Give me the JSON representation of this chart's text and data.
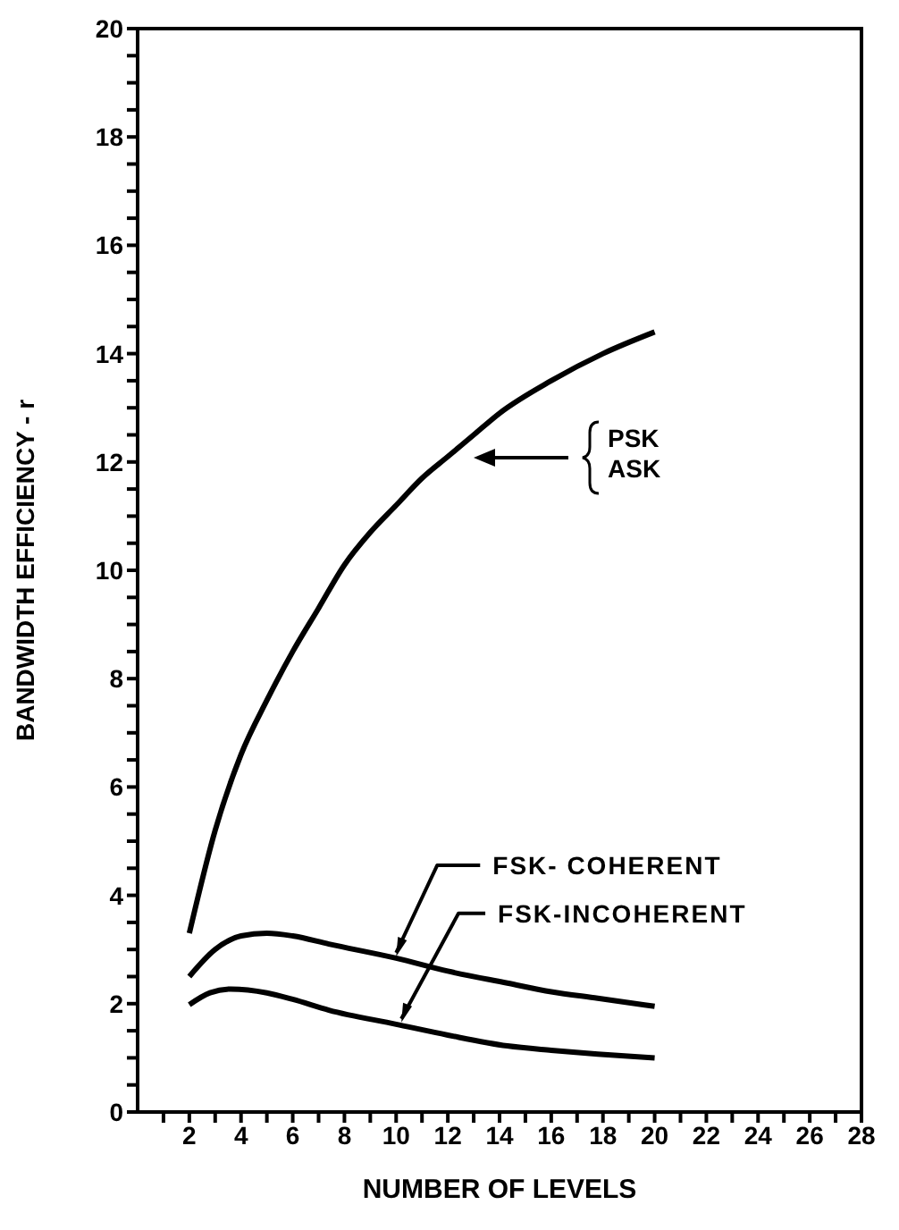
{
  "chart_data": {
    "type": "line",
    "xlabel": "NUMBER OF LEVELS",
    "ylabel": "BANDWIDTH EFFICIENCY - r",
    "xlim": [
      0,
      28
    ],
    "ylim": [
      0,
      20
    ],
    "xticks": [
      {
        "value": 1,
        "label": null
      },
      2,
      {
        "value": 3,
        "label": null
      },
      4,
      {
        "value": 5,
        "label": null
      },
      6,
      {
        "value": 7,
        "label": null
      },
      8,
      {
        "value": 9,
        "label": null
      },
      10,
      {
        "value": 11,
        "label": null
      },
      12,
      {
        "value": 13,
        "label": null
      },
      14,
      {
        "value": 15,
        "label": null
      },
      16,
      {
        "value": 17,
        "label": null
      },
      18,
      {
        "value": 19,
        "label": null
      },
      20,
      {
        "value": 21,
        "label": null
      },
      22,
      {
        "value": 23,
        "label": null
      },
      24,
      {
        "value": 25,
        "label": null
      },
      26,
      {
        "value": 27,
        "label": null
      },
      28
    ],
    "yticks": [
      0,
      {
        "value": 0.5,
        "label": null
      },
      {
        "value": 1,
        "label": null
      },
      {
        "value": 1.5,
        "label": null
      },
      2,
      {
        "value": 2.5,
        "label": null
      },
      {
        "value": 3,
        "label": null
      },
      {
        "value": 3.5,
        "label": null
      },
      4,
      {
        "value": 4.5,
        "label": null
      },
      {
        "value": 5,
        "label": null
      },
      {
        "value": 5.5,
        "label": null
      },
      6,
      {
        "value": 6.5,
        "label": null
      },
      {
        "value": 7,
        "label": null
      },
      {
        "value": 7.5,
        "label": null
      },
      8,
      {
        "value": 8.5,
        "label": null
      },
      {
        "value": 9,
        "label": null
      },
      {
        "value": 9.5,
        "label": null
      },
      10,
      {
        "value": 10.5,
        "label": null
      },
      {
        "value": 11,
        "label": null
      },
      {
        "value": 11.5,
        "label": null
      },
      12,
      {
        "value": 12.5,
        "label": null
      },
      {
        "value": 13,
        "label": null
      },
      {
        "value": 13.5,
        "label": null
      },
      14,
      {
        "value": 14.5,
        "label": null
      },
      {
        "value": 15,
        "label": null
      },
      {
        "value": 15.5,
        "label": null
      },
      16,
      {
        "value": 16.5,
        "label": null
      },
      {
        "value": 17,
        "label": null
      },
      {
        "value": 17.5,
        "label": null
      },
      18,
      {
        "value": 18.5,
        "label": null
      },
      {
        "value": 19,
        "label": null
      },
      {
        "value": 19.5,
        "label": null
      },
      20
    ],
    "marker": "none",
    "line_style": "solid",
    "series": [
      {
        "color": "#000000",
        "x": [
          2,
          3,
          4,
          5,
          6,
          7,
          8,
          9,
          10,
          11,
          12,
          13,
          14,
          16,
          18,
          20
        ],
        "values": [
          3.3,
          5.2,
          6.6,
          7.6,
          8.5,
          9.3,
          10.1,
          10.7,
          11.2,
          11.7,
          12.1,
          12.5,
          12.9,
          13.5,
          14.0,
          14.4
        ]
      },
      {
        "color": "#000000",
        "x": [
          2,
          3,
          4,
          5,
          6,
          7.4,
          10,
          12,
          14.3,
          16,
          17.8,
          20
        ],
        "values": [
          2.5,
          3.0,
          3.25,
          3.3,
          3.25,
          3.1,
          2.84,
          2.6,
          2.38,
          2.22,
          2.1,
          1.95
        ]
      },
      {
        "color": "#000000",
        "x": [
          2,
          2.8,
          3.6,
          5,
          6,
          7.4,
          10,
          12,
          14.3,
          16,
          17.8,
          20
        ],
        "values": [
          1.98,
          2.2,
          2.27,
          2.2,
          2.08,
          1.88,
          1.62,
          1.42,
          1.22,
          1.14,
          1.07,
          1.0
        ]
      }
    ],
    "annotations": [
      "PSK\nASK",
      {
        "text": "FSK- COHERENT",
        "x": 10,
        "y": 2.84
      },
      {
        "text": "FSK-INCOHERENT",
        "x": 10.2,
        "y": 1.62
      }
    ]
  }
}
